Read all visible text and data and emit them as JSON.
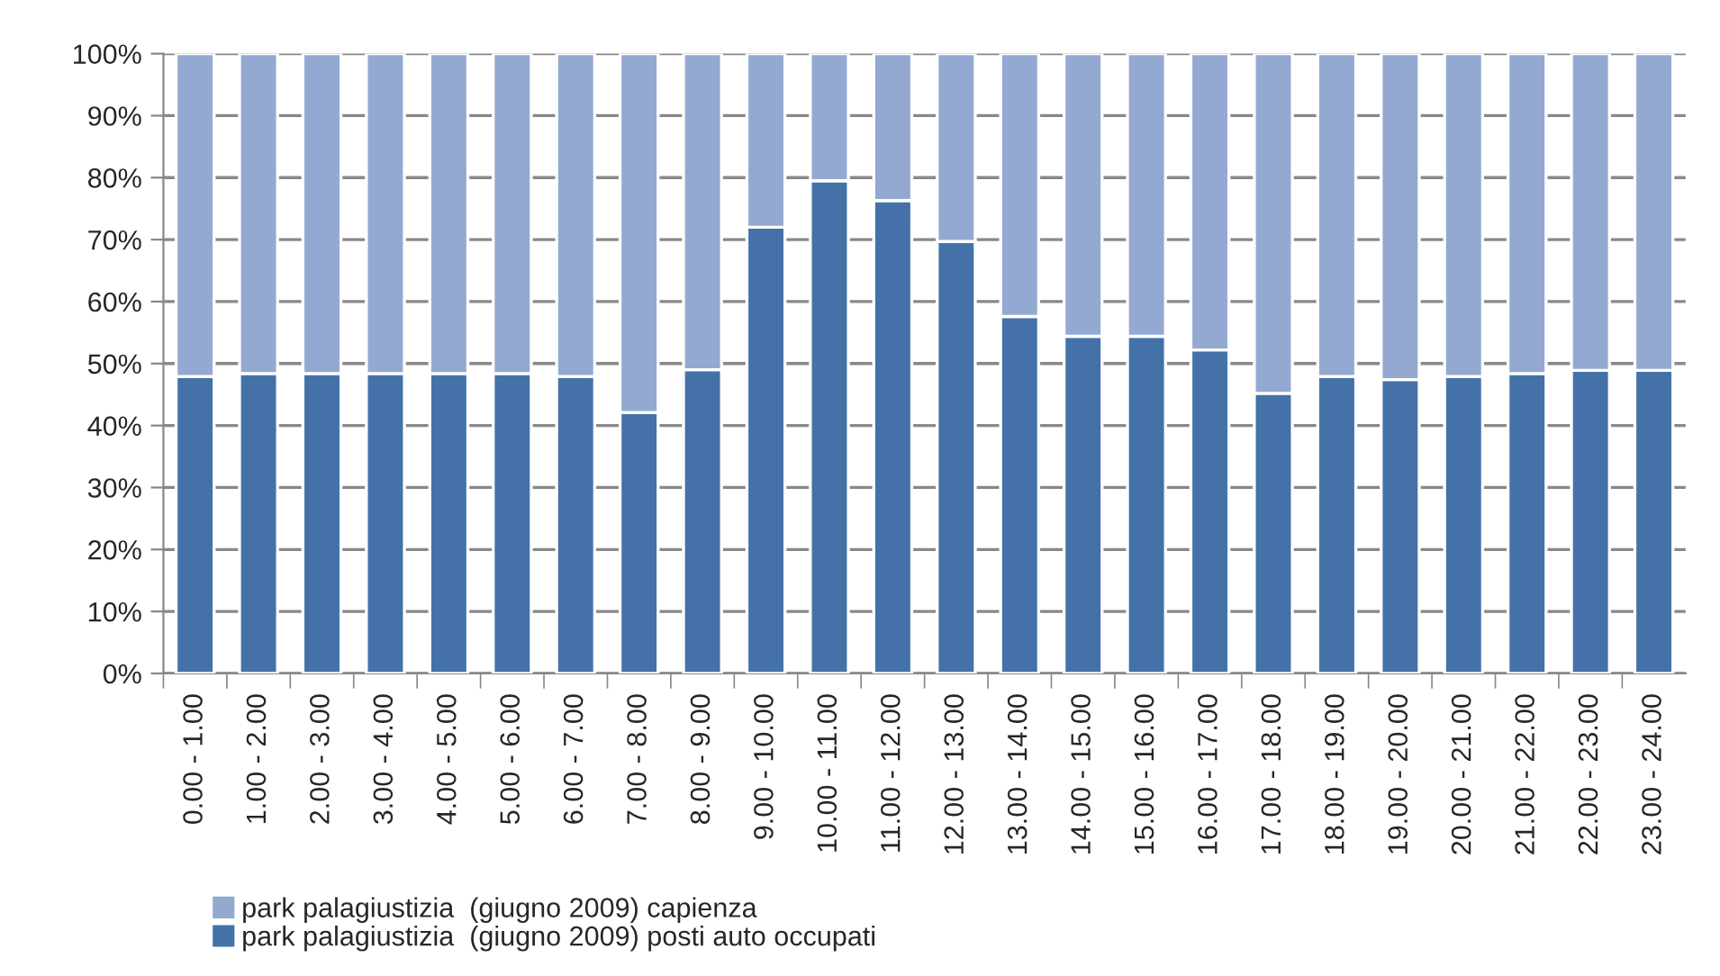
{
  "chart_data": {
    "type": "bar",
    "stacked": true,
    "categories": [
      "0.00 - 1.00",
      "1.00 - 2.00",
      "2.00 - 3.00",
      "3.00 - 4.00",
      "4.00 - 5.00",
      "5.00 - 6.00",
      "6.00 - 7.00",
      "7.00 - 8.00",
      "8.00 - 9.00",
      "9.00 - 10.00",
      "10.00 - 11.00",
      "11.00 - 12.00",
      "12.00 - 13.00",
      "13.00 - 14.00",
      "14.00 - 15.00",
      "15.00 - 16.00",
      "16.00 - 17.00",
      "17.00 - 18.00",
      "18.00 - 19.00",
      "19.00 - 20.00",
      "20.00 - 21.00",
      "21.00 - 22.00",
      "22.00 - 23.00",
      "23.00 - 24.00"
    ],
    "series": [
      {
        "name": "park palagiustizia  (giugno 2009) posti auto occupati",
        "color": "#4472a8",
        "values": [
          47.9,
          48.4,
          48.4,
          48.4,
          48.4,
          48.4,
          47.9,
          42.1,
          49.0,
          72.0,
          79.5,
          76.3,
          69.7,
          57.6,
          54.4,
          54.4,
          52.2,
          45.2,
          47.9,
          47.4,
          47.9,
          48.4,
          48.9,
          48.9
        ]
      },
      {
        "name": "park palagiustizia  (giugno 2009) capienza",
        "color": "#94a9d1",
        "values": [
          52.1,
          51.6,
          51.6,
          51.6,
          51.6,
          51.6,
          52.1,
          57.9,
          51.0,
          28.0,
          20.5,
          23.7,
          30.3,
          42.4,
          45.6,
          45.6,
          47.8,
          54.8,
          52.1,
          52.6,
          52.1,
          51.6,
          51.1,
          51.1
        ]
      }
    ],
    "ylim": [
      0,
      100
    ],
    "yticks": [
      {
        "value": 0,
        "label": "0%"
      },
      {
        "value": 10,
        "label": "10%"
      },
      {
        "value": 20,
        "label": "20%"
      },
      {
        "value": 30,
        "label": "30%"
      },
      {
        "value": 40,
        "label": "40%"
      },
      {
        "value": 50,
        "label": "50%"
      },
      {
        "value": 60,
        "label": "60%"
      },
      {
        "value": 70,
        "label": "70%"
      },
      {
        "value": 80,
        "label": "80%"
      },
      {
        "value": 90,
        "label": "90%"
      },
      {
        "value": 100,
        "label": "100%"
      }
    ],
    "grid": "y",
    "legend": "bottom"
  }
}
